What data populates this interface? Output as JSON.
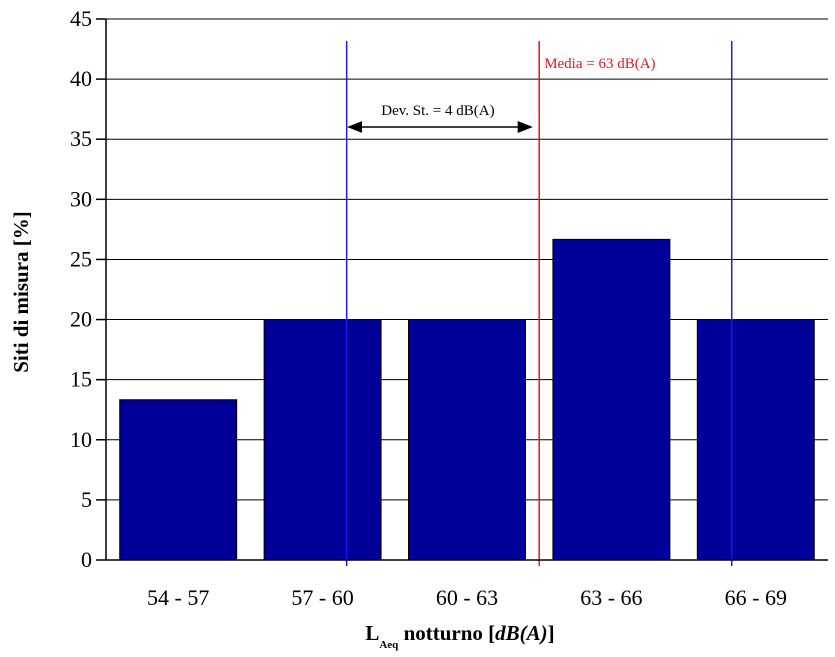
{
  "chart_data": {
    "type": "bar",
    "categories": [
      "54 - 57",
      "57 - 60",
      "60 - 63",
      "63 - 66",
      "66 - 69"
    ],
    "values": [
      13.33,
      20,
      20,
      26.67,
      20
    ],
    "ylim": [
      0,
      45
    ],
    "yticks": [
      0,
      5,
      10,
      15,
      20,
      25,
      30,
      35,
      40,
      45
    ],
    "ylabel": "Siti di misura [%]",
    "xlabel": {
      "main": "L",
      "sub": "Aeq",
      "rest": " notturno [",
      "italic": "dB(A)",
      "close": "]"
    },
    "grid": true,
    "bar_color": "#000099",
    "annotations": {
      "mean": {
        "label": "Media = 63 dB(A)",
        "x_db": 63,
        "color": "#e8141e"
      },
      "std": {
        "label": "Dev. St. = 4 dB(A)",
        "x_from_db": 59,
        "x_to_db": 63
      },
      "std_lines": {
        "x_db": [
          59,
          67
        ],
        "color": "#1a1aee"
      }
    }
  }
}
